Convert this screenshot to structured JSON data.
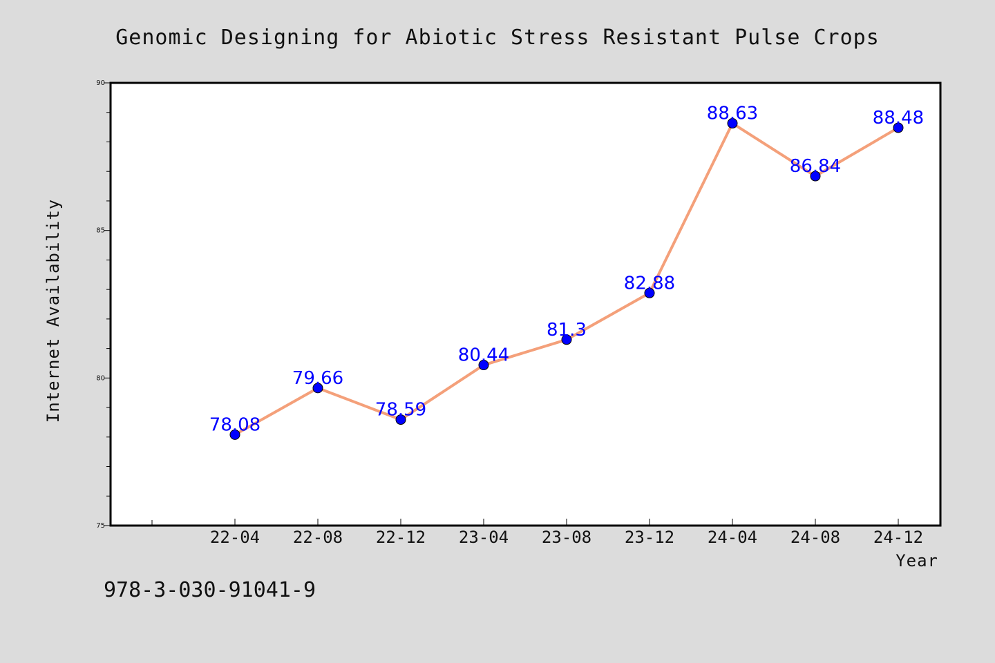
{
  "chart_data": {
    "type": "line",
    "title": "Genomic Designing for Abiotic Stress Resistant Pulse Crops",
    "xlabel": "Year",
    "ylabel": "Internet Availability",
    "categories": [
      "22-04",
      "22-08",
      "22-12",
      "23-04",
      "23-08",
      "23-12",
      "24-04",
      "24-08",
      "24-12"
    ],
    "values": [
      78.08,
      79.66,
      78.59,
      80.44,
      81.3,
      82.88,
      88.63,
      86.84,
      88.48
    ],
    "data_labels": [
      "78.08",
      "79.66",
      "78.59",
      "80.44",
      "81.3",
      "82.88",
      "88.63",
      "86.84",
      "88.48"
    ],
    "ylim": [
      75,
      90
    ],
    "yticks": [
      "75",
      "80",
      "85",
      "90"
    ],
    "grid": false,
    "legend": "none",
    "colors": {
      "line": "#f4a07a",
      "marker": "#0000ff",
      "data_label": "#0000ff",
      "plot_bg": "#ffffff",
      "page_bg": "#dcdcdc"
    }
  },
  "footer_text": "978-3-030-91041-9"
}
